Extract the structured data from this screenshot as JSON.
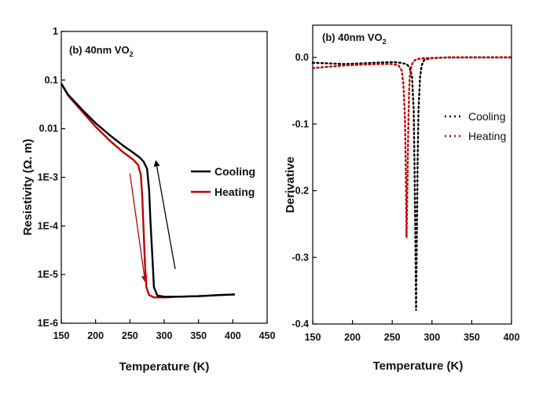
{
  "chart_data": [
    {
      "type": "line",
      "panel_label": "(b) 40nm VO",
      "panel_label_sub": "2",
      "xlabel": "Temperature (K)",
      "ylabel": "Resistivity (Ω. m)",
      "xlim": [
        150,
        450
      ],
      "ylim": [
        1e-06,
        1
      ],
      "yscale": "log",
      "xticks": [
        "150",
        "200",
        "250",
        "300",
        "350",
        "400",
        "450"
      ],
      "yticks": [
        "1E-6",
        "1E-5",
        "1E-4",
        "1E-3",
        "0.01",
        "0.1",
        "1"
      ],
      "legend_position": "right-middle",
      "series": [
        {
          "name": "Cooling",
          "color": "#000000",
          "x": [
            150,
            160,
            180,
            200,
            220,
            240,
            255,
            265,
            270,
            275,
            278,
            280,
            283,
            285,
            290,
            300,
            320,
            350,
            380,
            403
          ],
          "y": [
            0.085,
            0.05,
            0.025,
            0.013,
            0.0075,
            0.0045,
            0.0032,
            0.0025,
            0.0021,
            0.0015,
            0.00055,
            0.00012,
            2e-05,
            5.5e-06,
            3.7e-06,
            3.5e-06,
            3.5e-06,
            3.6e-06,
            3.8e-06,
            3.9e-06
          ]
        },
        {
          "name": "Heating",
          "color": "#c00000",
          "x": [
            150,
            160,
            180,
            200,
            220,
            240,
            255,
            262,
            266,
            268,
            270,
            272,
            274,
            278,
            285,
            300,
            320,
            350,
            380,
            403
          ],
          "y": [
            0.085,
            0.048,
            0.023,
            0.011,
            0.0058,
            0.0033,
            0.0023,
            0.0018,
            0.0011,
            0.0004,
            8e-05,
            1.6e-05,
            5.5e-06,
            3.8e-06,
            3.4e-06,
            3.4e-06,
            3.5e-06,
            3.6e-06,
            3.8e-06,
            3.9e-06
          ]
        }
      ],
      "annotations": [
        {
          "type": "arrow",
          "color": "#c00000",
          "from": [
            250,
            0.0012
          ],
          "to": [
            272,
            7.5e-06
          ]
        },
        {
          "type": "arrow",
          "color": "#000000",
          "from": [
            316,
            1.3e-05
          ],
          "to": [
            288,
            0.0021
          ]
        }
      ]
    },
    {
      "type": "line",
      "panel_label": "(b) 40nm VO",
      "panel_label_sub": "2",
      "xlabel": "Temperature (K)",
      "ylabel": "Derivative",
      "xlim": [
        150,
        400
      ],
      "ylim": [
        -0.4,
        0.0
      ],
      "xticks": [
        "150",
        "200",
        "250",
        "300",
        "350",
        "400"
      ],
      "yticks": [
        "-0.4",
        "-0.3",
        "-0.2",
        "-0.1",
        "0.0"
      ],
      "legend_position": "right-upper",
      "series": [
        {
          "name": "Cooling",
          "color": "#000000",
          "style": "dotted",
          "x": [
            150,
            170,
            190,
            210,
            230,
            250,
            260,
            268,
            272,
            275,
            277,
            278,
            279,
            280,
            281,
            282,
            283,
            285,
            287,
            290,
            295,
            300,
            320,
            350,
            380,
            400
          ],
          "y": [
            -0.008,
            -0.009,
            -0.01,
            -0.009,
            -0.008,
            -0.007,
            -0.008,
            -0.01,
            -0.015,
            -0.03,
            -0.08,
            -0.16,
            -0.26,
            -0.38,
            -0.26,
            -0.15,
            -0.08,
            -0.03,
            -0.012,
            -0.004,
            -0.002,
            -0.001,
            0.0,
            0.0,
            0.0,
            0.0
          ]
        },
        {
          "name": "Heating",
          "color": "#c00000",
          "style": "dotted",
          "x": [
            150,
            170,
            190,
            210,
            230,
            250,
            258,
            262,
            264,
            266,
            267,
            268,
            269,
            270,
            271,
            272,
            274,
            277,
            280,
            285,
            290,
            300,
            320,
            350,
            380,
            400
          ],
          "y": [
            -0.016,
            -0.014,
            -0.012,
            -0.011,
            -0.01,
            -0.01,
            -0.012,
            -0.02,
            -0.04,
            -0.09,
            -0.16,
            -0.27,
            -0.2,
            -0.12,
            -0.06,
            -0.03,
            -0.012,
            -0.006,
            -0.003,
            -0.002,
            -0.001,
            -0.001,
            0.0,
            0.0,
            0.0,
            0.0
          ]
        }
      ]
    }
  ]
}
